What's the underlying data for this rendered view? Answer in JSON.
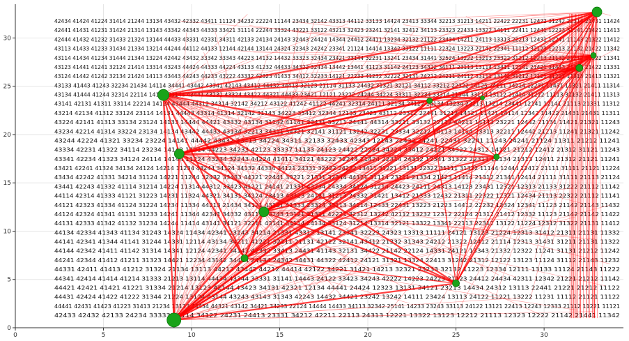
{
  "chart_data": {
    "type": "scatter",
    "title": "",
    "xlabel": "",
    "ylabel": "",
    "xlim": [
      0,
      34.5
    ],
    "ylim": [
      0,
      33.5
    ],
    "xticks": [
      0,
      5,
      10,
      15,
      20,
      25,
      30
    ],
    "yticks": [
      0,
      5,
      10,
      15,
      20,
      25,
      30
    ],
    "grid": true,
    "colors": {
      "edge": "#ff0000",
      "node": "#1aa31a",
      "label": "#111111",
      "axis": "#333333",
      "grid": "#e6e6e6"
    },
    "nodes": [
      {
        "id": 1,
        "x": 9.0,
        "y": 0.8,
        "size": 10
      },
      {
        "id": 2,
        "x": 8.4,
        "y": 24.1,
        "size": 8
      },
      {
        "id": 3,
        "x": 9.3,
        "y": 18.0,
        "size": 7
      },
      {
        "id": 4,
        "x": 14.1,
        "y": 12.0,
        "size": 7
      },
      {
        "id": 5,
        "x": 13.0,
        "y": 7.2,
        "size": 5
      },
      {
        "id": 6,
        "x": 25.0,
        "y": 4.6,
        "size": 5
      },
      {
        "id": 7,
        "x": 33.0,
        "y": 32.7,
        "size": 7
      },
      {
        "id": 8,
        "x": 32.0,
        "y": 26.9,
        "size": 5
      },
      {
        "id": 9,
        "x": 32.8,
        "y": 28.2,
        "size": 4
      },
      {
        "id": 10,
        "x": 27.3,
        "y": 17.7,
        "size": 4
      },
      {
        "id": 11,
        "x": 23.5,
        "y": 23.5,
        "size": 4
      },
      {
        "id": 12,
        "x": 26.5,
        "y": 23.8,
        "size": 3
      }
    ],
    "label_rows": [
      "42434 41424 41224 31414 21244 13134 43432 42332 43411 11124 34232 22224 11144 23434 32142 43313 44112 33133 14424 23413 33344 32213 31213 14211 22422 22231 12422 31242 22314 21431 11424",
      "42441 41431 41231 31424 21314 13143 43342 44343 44333 33421 31114 22244 33324 43221 33122 43213 32423 23241 32141 32412 34113 23323 22433 13322 14111 22411 12441 12223 31141 21421 11413",
      "42444 41432 41232 31433 21324 13144 44433 43331 42331 34311 42133 24134 24143 32443 24424 14344 24412 24411 13234 32132 21122 23434 14211 24113 13313 22213 12431 12241 11143 21322 11412",
      "43113 41433 41233 31434 21334 13214 44244 44112 44133 12144 42144 13144 24324 32343 24242 23341 21124 14414 13342 33122 11111 22324 13223 22142 22341 11112 32123 12213 21132 21422 11342",
      "43114 41434 41234 31444 21344 13224 42442 43432 33342 33343 44223 14132 14432 33323 32434 23421 23144 32231 13241 23434 31441 32524 13222 13213 23322 31212 12213 21132 21212 11322 11341",
      "43123 41441 41241 32124 21414 13314 43243 44424 44333 44224 43133 41232 44433 34322 32434 13442 13441 41123 31142 24123 34322 34111 23113 13114 13411 12141 21421 31443 21313 21422 11331",
      "43124 41442 41242 32134 21424 14113 43443 44243 44233 43222 43332 42323 41433 34412 32233 14121 22233 41232 32222 32131 24212 24211 24112 33111 13142 31212 12121 31232 11313 21413 11321",
      "43133 41443 41243 32234 21434 14114 34441 43442 43341 42143 43412 44432 34413 32123 21114 31133 24432 31321 32121 34112 33212 22322 14125 24111 14214 12231 11431 11321 21411 11314",
      "43134 41444 41244 32314 22114 14123 33144 43441 43231 43324 43422 44321 44433 23421 12121 23222 24244 34224 33311 32234 33314 21344 33114 13112 21414 31212 11113 31132 21411 11313",
      "43141 42131 41311 33114 22214 14124 43444 44312 34314 32142 34212 43122 41242 41122 44241 32314 24111 32134 24122 14134 13234 23213 13214 23441 12141 12141 21113 21331 11312",
      "43214 42134 41312 33124 23114 14131 44443 43314 41314 32142 31143 34223 33412 32344 12133 23423 43112 23312 22441 31212 14121 11421 14114 12342 11422 21431 21431 11311",
      "43224 42141 41313 33134 23124 14133 14444 44421 43332 43134 31142 41141 23431 33211 24441 44314 33211 33132 22112 44211 14143 23221 12442 21131 11421 21321 11243",
      "43234 42214 41314 33224 23134 14134 43442 44433 43134 32213 34311 34321 32141 31121 13242 32231 23334 32212 14113 14114 23313 32211 12442 21213 11241 21321 11242",
      "43244 42224 41321 33234 23224 14141 44442 43432 33413 34224 34311 32133 32433 42343 12143 22432 34241 22431 32241 11243 24241 21124 11311 21212 11241",
      "43334 42231 41322 34114 23234 14142 11214 44223 34233 42123 33337 11133 24123 24422 22224 34224 33412 24121 34322 24312 14121 21212 12412 21312 31121 11243",
      "43341 42234 41323 34124 24114 14144 11224 43234 32243 44224 41411 34121 43222 32244 21424 22314 24332 12341 31322 22311 11134 21313 12411 21312 21121 11241",
      "43421 42241 41324 34134 24124 14214 11234 43244 34124 34132 44334 34121 24331 32422 24232 13411 31221 13131 22322 31111 31322 11144 12444 12412 21111 31111 21121 11224",
      "43434 42242 41331 34214 31124 14221 11244 32432 33433 44121 22441 33221 21331 32344 44121 31114 23111 21334 21423 11414 21312 21341 12414 21111 31111 21113 21124",
      "43441 42243 41332 41114 31214 14224 11314 44312 33423 41221 24141 21331 43234 24334 34124 31214 24423 24111 24313 14123 23431 12321 12313 21133 31222 21112 11142",
      "44114 42314 41333 41121 31223 14231 11324 44321 34131 34124 23413 43323 24121 31213 24332 31421 13412 21333 12432 21311 22322 12321 12434 21113 22322 21112 11141",
      "44121 42323 41334 41124 31224 14234 11334 44213 21434 34121 43131 41333 23314 33113 34214 12433 22431 13223 21223 14412 22232 12324 12341 11123 21142 21143 11432",
      "44124 42324 41341 41131 31233 14241 11344 42341 34332 43113 43243 13121 21321 42221 32312 13242 42112 13232 12312 22124 21312 21412 12332 11123 21142 21142 11422",
      "44131 42333 41342 41132 31234 14244 11414 43141 34121 32211 43141 34114 24134 33124 31214 13314 32121 13322 13341 22113 22312 13122 11224 12312 31322 21131 11412",
      "44134 42334 41343 41134 31243 14324 11434 42341 23143 34214 21331 43313 13141 23341 32223 24323 13313 11111 24121 13123 21224 12313 31412 21311 21131 11332",
      "44141 42341 41344 41141 31244 14331 12114 43134 34211 41221 32211 21131 42122 32141 43412 21332 31343 24212 21322 12412 21114 12313 31431 31211 21131 11322",
      "44144 42342 41411 41142 31314 14341 12124 42341 34143 42332 33413 24431 41143 32131 34422 21142 22124 14331 24121 13343 21332 12322 11241 31131 21212 11242",
      "44241 42344 41412 41211 31323 14421 12234 43142 34414 24134 24342 34431 44322 42412 24121 31321 13324 22413 31242 21312 12122 13123 11124 31112 21143 11232",
      "44331 42411 41413 41212 31324 21134 13113 44213 43442 44212 44414 42122 34221 31421 14213 32321 23233 32132 11223 12334 12111 13133 11124 21143 11222",
      "44341 42414 41414 41214 31333 21213 13114 44434 43344 33331 31141 14443 24122 33423 34243 42222 14223 24223 21123 24412 24434 42311 12342 21221 21212 11142",
      "44421 42421 41421 41221 31334 21214 13123 42144 43423 34131 42321 12134 44441 24424 12323 13131 34121 23213 14434 24312 13113 22441 21221 21212 11122",
      "44431 42424 41422 41222 31344 21224 13124 43144 43243 43143 31343 42243 14432 34421 23242 13242 14111 23424 13113 24122 11221 13222 11231 11112 21121 11122",
      "44441 42431 41423 41223 31413 21234 13133 44434 44321 43142 34421 34233 22124 14444 14433 34113 32342 25141 14233 23243 33113 24122 13121 22413 12243 12333 21112 11221 11121",
      "42433 42432 42133 24234 33333 42114 34122 24231 24413 23331 34212 42211 22113 24313 12221 13322 13123 12212 21113 12323 12222 21142 21441 11342"
    ]
  }
}
